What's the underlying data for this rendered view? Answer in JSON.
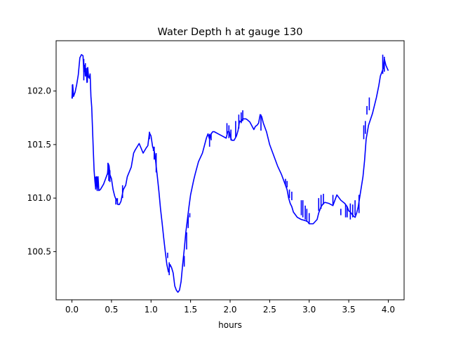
{
  "chart_data": {
    "type": "line",
    "title": "Water Depth h at gauge 130",
    "xlabel": "hours",
    "ylabel": "",
    "xlim": [
      -0.2,
      4.2
    ],
    "ylim": [
      100.05,
      102.47
    ],
    "xticks": [
      0.0,
      0.5,
      1.0,
      1.5,
      2.0,
      2.5,
      3.0,
      3.5,
      4.0
    ],
    "xtick_labels": [
      "0.0",
      "0.5",
      "1.0",
      "1.5",
      "2.0",
      "2.5",
      "3.0",
      "3.5",
      "4.0"
    ],
    "yticks": [
      100.5,
      101.0,
      101.5,
      102.0
    ],
    "ytick_labels": [
      "100.5",
      "101.0",
      "101.5",
      "102.0"
    ],
    "grid": false,
    "series": [
      {
        "name": "",
        "color": "#0000ff",
        "x": [
          0.0,
          0.01,
          0.02,
          0.04,
          0.06,
          0.08,
          0.1,
          0.12,
          0.14,
          0.15,
          0.16,
          0.17,
          0.18,
          0.19,
          0.2,
          0.21,
          0.22,
          0.23,
          0.24,
          0.25,
          0.27,
          0.28,
          0.29,
          0.3,
          0.31,
          0.32,
          0.33,
          0.34,
          0.36,
          0.4,
          0.42,
          0.45,
          0.46,
          0.47,
          0.48,
          0.5,
          0.52,
          0.54,
          0.55,
          0.57,
          0.58,
          0.6,
          0.62,
          0.65,
          0.68,
          0.7,
          0.75,
          0.78,
          0.8,
          0.85,
          0.9,
          0.94,
          0.96,
          0.98,
          1.0,
          1.02,
          1.04,
          1.05,
          1.08,
          1.1,
          1.12,
          1.14,
          1.16,
          1.18,
          1.2,
          1.22,
          1.24,
          1.26,
          1.28,
          1.3,
          1.32,
          1.34,
          1.36,
          1.38,
          1.4,
          1.42,
          1.44,
          1.46,
          1.48,
          1.5,
          1.52,
          1.54,
          1.56,
          1.6,
          1.65,
          1.7,
          1.72,
          1.74,
          1.76,
          1.78,
          1.8,
          1.85,
          1.9,
          1.95,
          1.97,
          1.99,
          2.0,
          2.02,
          2.05,
          2.08,
          2.1,
          2.12,
          2.14,
          2.16,
          2.18,
          2.2,
          2.22,
          2.25,
          2.3,
          2.32,
          2.34,
          2.36,
          2.38,
          2.4,
          2.42,
          2.44,
          2.46,
          2.48,
          2.5,
          2.55,
          2.6,
          2.65,
          2.7,
          2.72,
          2.74,
          2.76,
          2.78,
          2.8,
          2.85,
          2.9,
          2.95,
          2.98,
          3.0,
          3.05,
          3.1,
          3.12,
          3.15,
          3.18,
          3.2,
          3.25,
          3.3,
          3.35,
          3.4,
          3.45,
          3.48,
          3.5,
          3.52,
          3.55,
          3.58,
          3.6,
          3.62,
          3.65,
          3.68,
          3.7,
          3.72,
          3.75,
          3.8,
          3.85,
          3.88,
          3.9,
          3.92,
          3.94,
          3.95,
          3.97,
          4.0
        ],
        "y": [
          101.93,
          102.06,
          101.95,
          101.99,
          102.06,
          102.15,
          102.31,
          102.34,
          102.33,
          102.18,
          102.24,
          102.14,
          102.21,
          102.08,
          102.22,
          102.13,
          102.12,
          102.16,
          101.95,
          101.85,
          101.45,
          101.26,
          101.16,
          101.09,
          101.2,
          101.07,
          101.2,
          101.07,
          101.08,
          101.13,
          101.17,
          101.23,
          101.32,
          101.3,
          101.22,
          101.18,
          101.08,
          101.02,
          101.0,
          100.98,
          100.94,
          100.94,
          100.97,
          101.08,
          101.12,
          101.2,
          101.29,
          101.42,
          101.45,
          101.51,
          101.42,
          101.47,
          101.49,
          101.61,
          101.58,
          101.48,
          101.44,
          101.4,
          101.2,
          101.06,
          100.9,
          100.77,
          100.63,
          100.5,
          100.38,
          100.31,
          100.38,
          100.35,
          100.3,
          100.18,
          100.14,
          100.12,
          100.14,
          100.22,
          100.38,
          100.52,
          100.68,
          100.8,
          100.92,
          101.03,
          101.1,
          101.17,
          101.23,
          101.34,
          101.42,
          101.56,
          101.6,
          101.55,
          101.6,
          101.62,
          101.62,
          101.6,
          101.58,
          101.56,
          101.62,
          101.62,
          101.58,
          101.54,
          101.54,
          101.58,
          101.63,
          101.72,
          101.71,
          101.74,
          101.74,
          101.74,
          101.73,
          101.71,
          101.64,
          101.67,
          101.68,
          101.7,
          101.78,
          101.76,
          101.7,
          101.66,
          101.62,
          101.56,
          101.5,
          101.4,
          101.3,
          101.22,
          101.12,
          101.08,
          101.0,
          100.95,
          100.92,
          100.87,
          100.82,
          100.8,
          100.79,
          100.78,
          100.76,
          100.76,
          100.8,
          100.86,
          100.92,
          100.95,
          100.96,
          100.95,
          100.93,
          101.03,
          100.98,
          100.95,
          100.92,
          100.88,
          100.87,
          100.84,
          100.82,
          100.86,
          100.92,
          101.06,
          101.2,
          101.35,
          101.55,
          101.68,
          101.79,
          101.94,
          102.05,
          102.14,
          102.18,
          102.22,
          102.3,
          102.24,
          102.19
        ]
      }
    ],
    "spikes": [
      [
        0.005,
        101.93,
        102.06
      ],
      [
        0.15,
        102.1,
        102.3
      ],
      [
        0.17,
        102.14,
        102.26
      ],
      [
        0.195,
        102.08,
        102.22
      ],
      [
        0.3,
        101.08,
        101.2
      ],
      [
        0.32,
        101.07,
        101.2
      ],
      [
        0.455,
        101.22,
        101.33
      ],
      [
        0.465,
        101.16,
        101.3
      ],
      [
        0.48,
        101.15,
        101.26
      ],
      [
        0.555,
        100.94,
        101.0
      ],
      [
        0.575,
        100.94,
        101.0
      ],
      [
        0.64,
        101.0,
        101.12
      ],
      [
        0.98,
        101.55,
        101.62
      ],
      [
        1.03,
        101.44,
        101.48
      ],
      [
        1.04,
        101.36,
        101.48
      ],
      [
        1.065,
        101.24,
        101.42
      ],
      [
        1.21,
        100.44,
        100.49
      ],
      [
        1.23,
        100.28,
        100.4
      ],
      [
        1.42,
        100.36,
        100.46
      ],
      [
        1.45,
        100.52,
        100.68
      ],
      [
        1.47,
        100.72,
        100.84
      ],
      [
        1.49,
        100.82,
        100.86
      ],
      [
        1.74,
        101.48,
        101.6
      ],
      [
        1.76,
        101.54,
        101.6
      ],
      [
        1.96,
        101.6,
        101.7
      ],
      [
        1.985,
        101.56,
        101.68
      ],
      [
        2.01,
        101.54,
        101.64
      ],
      [
        2.07,
        101.57,
        101.72
      ],
      [
        2.11,
        101.65,
        101.78
      ],
      [
        2.14,
        101.7,
        101.8
      ],
      [
        2.16,
        101.72,
        101.82
      ],
      [
        2.39,
        101.63,
        101.78
      ],
      [
        2.7,
        101.12,
        101.18
      ],
      [
        2.72,
        101.1,
        101.16
      ],
      [
        2.75,
        101.0,
        101.08
      ],
      [
        2.78,
        100.98,
        101.06
      ],
      [
        2.9,
        100.84,
        100.98
      ],
      [
        2.92,
        100.82,
        100.98
      ],
      [
        2.95,
        100.8,
        100.93
      ],
      [
        2.97,
        100.78,
        100.9
      ],
      [
        3.0,
        100.76,
        100.86
      ],
      [
        3.12,
        100.88,
        101.0
      ],
      [
        3.15,
        100.9,
        101.03
      ],
      [
        3.18,
        100.94,
        101.04
      ],
      [
        3.3,
        100.94,
        101.03
      ],
      [
        3.4,
        100.84,
        100.9
      ],
      [
        3.46,
        100.82,
        100.94
      ],
      [
        3.48,
        100.82,
        100.92
      ],
      [
        3.52,
        100.8,
        100.95
      ],
      [
        3.55,
        100.82,
        100.94
      ],
      [
        3.58,
        100.84,
        100.98
      ],
      [
        3.63,
        100.86,
        101.03
      ],
      [
        3.69,
        101.55,
        101.68
      ],
      [
        3.71,
        101.6,
        101.72
      ],
      [
        3.73,
        101.78,
        101.86
      ],
      [
        3.76,
        101.82,
        101.94
      ],
      [
        3.93,
        102.16,
        102.34
      ],
      [
        3.95,
        102.18,
        102.32
      ]
    ]
  }
}
